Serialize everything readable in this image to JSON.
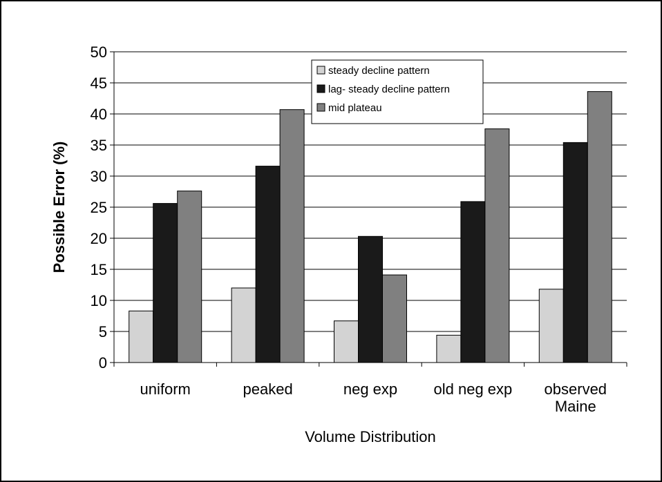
{
  "chart_data": {
    "type": "bar",
    "title": "",
    "xlabel": "Volume Distribution",
    "ylabel": "Possible Error (%)",
    "ylim": [
      0,
      50
    ],
    "yticks": [
      0,
      5,
      10,
      15,
      20,
      25,
      30,
      35,
      40,
      45,
      50
    ],
    "grid": true,
    "legend_position": "top-center",
    "categories": [
      [
        "uniform"
      ],
      [
        "peaked"
      ],
      [
        "neg exp"
      ],
      [
        "old neg exp"
      ],
      [
        "observed",
        "Maine"
      ]
    ],
    "series": [
      {
        "name": "steady decline pattern",
        "color": "#d3d3d3",
        "values": [
          8.3,
          12.0,
          6.7,
          4.4,
          11.8
        ]
      },
      {
        "name": "lag- steady decline pattern",
        "color": "#1a1a1a",
        "values": [
          25.6,
          31.6,
          20.3,
          25.9,
          35.4
        ]
      },
      {
        "name": "mid plateau",
        "color": "#808080",
        "values": [
          27.6,
          40.7,
          14.1,
          37.6,
          43.6
        ]
      }
    ]
  }
}
